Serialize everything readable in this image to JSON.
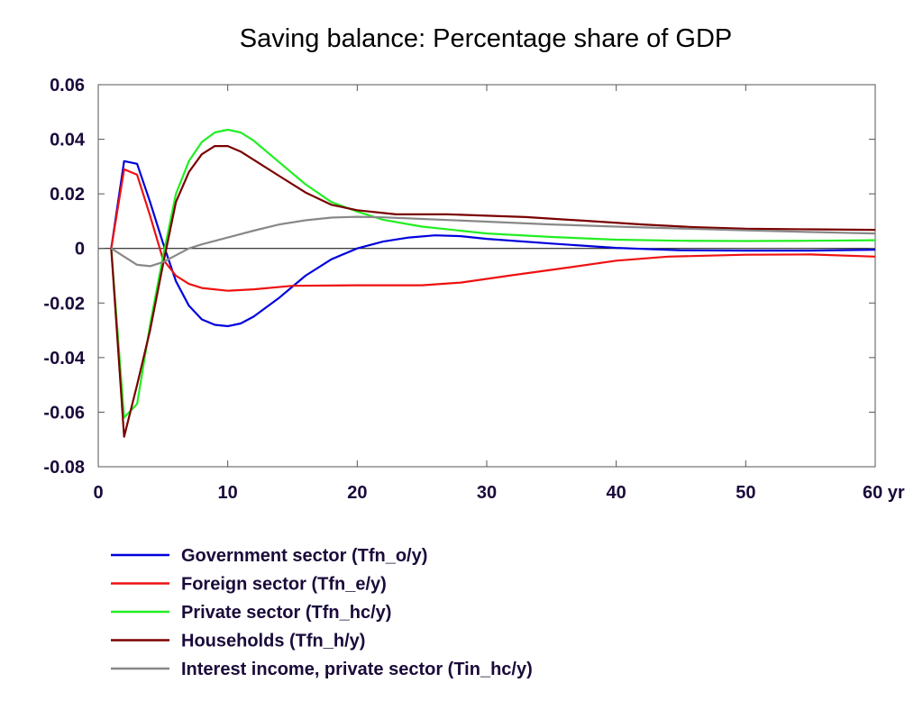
{
  "chart_data": {
    "type": "line",
    "title": "Saving balance: Percentage share of GDP",
    "xlabel": "",
    "ylabel": "",
    "xlim": [
      0,
      60
    ],
    "ylim": [
      -0.08,
      0.06
    ],
    "x_ticks": [
      "0",
      "10",
      "20",
      "30",
      "40",
      "50",
      "60 yr"
    ],
    "x_tick_values": [
      0,
      10,
      20,
      30,
      40,
      50,
      60
    ],
    "y_ticks": [
      "0.06",
      "0.04",
      "0.02",
      "0",
      "-0.02",
      "-0.04",
      "-0.06",
      "-0.08"
    ],
    "y_tick_values": [
      0.06,
      0.04,
      0.02,
      0,
      -0.02,
      -0.04,
      -0.06,
      -0.08
    ],
    "zero_line": true,
    "grid": false,
    "legend_position": "bottom",
    "series": [
      {
        "name": "Government sector (Tfn_o/y)",
        "color": "#0000dd",
        "points": [
          [
            1,
            0
          ],
          [
            2,
            0.032
          ],
          [
            3,
            0.031
          ],
          [
            4,
            0.017
          ],
          [
            5,
            0.002
          ],
          [
            6,
            -0.012
          ],
          [
            7,
            -0.021
          ],
          [
            8,
            -0.026
          ],
          [
            9,
            -0.028
          ],
          [
            10,
            -0.0285
          ],
          [
            11,
            -0.0275
          ],
          [
            12,
            -0.025
          ],
          [
            14,
            -0.018
          ],
          [
            16,
            -0.01
          ],
          [
            18,
            -0.004
          ],
          [
            20,
            0
          ],
          [
            22,
            0.0025
          ],
          [
            24,
            0.004
          ],
          [
            26,
            0.0048
          ],
          [
            28,
            0.0045
          ],
          [
            30,
            0.0035
          ],
          [
            35,
            0.0018
          ],
          [
            40,
            0.0002
          ],
          [
            45,
            -0.0007
          ],
          [
            50,
            -0.0008
          ],
          [
            55,
            -0.0008
          ],
          [
            60,
            -0.0005
          ]
        ]
      },
      {
        "name": "Foreign sector (Tfn_e/y)",
        "color": "#ee1111",
        "points": [
          [
            1,
            0
          ],
          [
            2,
            0.029
          ],
          [
            3,
            0.027
          ],
          [
            4,
            0.012
          ],
          [
            5,
            -0.004
          ],
          [
            6,
            -0.01
          ],
          [
            7,
            -0.013
          ],
          [
            8,
            -0.0145
          ],
          [
            10,
            -0.0155
          ],
          [
            12,
            -0.015
          ],
          [
            15,
            -0.0137
          ],
          [
            20,
            -0.0135
          ],
          [
            25,
            -0.0135
          ],
          [
            28,
            -0.0125
          ],
          [
            32,
            -0.0098
          ],
          [
            36,
            -0.0072
          ],
          [
            40,
            -0.0045
          ],
          [
            44,
            -0.003
          ],
          [
            50,
            -0.0023
          ],
          [
            55,
            -0.0022
          ],
          [
            60,
            -0.003
          ]
        ]
      },
      {
        "name": "Private sector (Tfn_hc/y)",
        "color": "#22ee22",
        "points": [
          [
            1,
            0
          ],
          [
            2,
            -0.062
          ],
          [
            3,
            -0.057
          ],
          [
            4,
            -0.028
          ],
          [
            5,
            -0.003
          ],
          [
            6,
            0.02
          ],
          [
            7,
            0.032
          ],
          [
            8,
            0.039
          ],
          [
            9,
            0.0425
          ],
          [
            10,
            0.0435
          ],
          [
            11,
            0.0425
          ],
          [
            12,
            0.0395
          ],
          [
            14,
            0.0315
          ],
          [
            16,
            0.0235
          ],
          [
            18,
            0.017
          ],
          [
            20,
            0.0135
          ],
          [
            22,
            0.0105
          ],
          [
            25,
            0.008
          ],
          [
            30,
            0.0055
          ],
          [
            35,
            0.0042
          ],
          [
            40,
            0.0032
          ],
          [
            45,
            0.0028
          ],
          [
            50,
            0.0027
          ],
          [
            55,
            0.0028
          ],
          [
            60,
            0.003
          ]
        ]
      },
      {
        "name": "Households (Tfn_h/y)",
        "color": "#7a0000",
        "points": [
          [
            1,
            0
          ],
          [
            2,
            -0.069
          ],
          [
            3,
            -0.05
          ],
          [
            4,
            -0.03
          ],
          [
            5,
            -0.006
          ],
          [
            6,
            0.017
          ],
          [
            7,
            0.028
          ],
          [
            8,
            0.0345
          ],
          [
            9,
            0.0375
          ],
          [
            10,
            0.0375
          ],
          [
            11,
            0.0355
          ],
          [
            12,
            0.0325
          ],
          [
            14,
            0.0265
          ],
          [
            16,
            0.0205
          ],
          [
            18,
            0.016
          ],
          [
            20,
            0.014
          ],
          [
            23,
            0.0125
          ],
          [
            27,
            0.0125
          ],
          [
            30,
            0.012
          ],
          [
            33,
            0.0115
          ],
          [
            38,
            0.01
          ],
          [
            42,
            0.0088
          ],
          [
            46,
            0.0078
          ],
          [
            50,
            0.0072
          ],
          [
            55,
            0.007
          ],
          [
            60,
            0.0068
          ]
        ]
      },
      {
        "name": "Interest income, private sector (Tin_hc/y)",
        "color": "#888888",
        "points": [
          [
            1,
            0
          ],
          [
            2,
            -0.003
          ],
          [
            3,
            -0.006
          ],
          [
            4,
            -0.0065
          ],
          [
            5,
            -0.005
          ],
          [
            6,
            -0.0025
          ],
          [
            7,
            0
          ],
          [
            8,
            0.0015
          ],
          [
            10,
            0.004
          ],
          [
            12,
            0.0065
          ],
          [
            14,
            0.0088
          ],
          [
            16,
            0.0103
          ],
          [
            18,
            0.0113
          ],
          [
            20,
            0.0116
          ],
          [
            22,
            0.0114
          ],
          [
            25,
            0.0108
          ],
          [
            30,
            0.0098
          ],
          [
            35,
            0.0088
          ],
          [
            40,
            0.008
          ],
          [
            45,
            0.0073
          ],
          [
            50,
            0.0066
          ],
          [
            55,
            0.006
          ],
          [
            60,
            0.0055
          ]
        ]
      }
    ]
  }
}
